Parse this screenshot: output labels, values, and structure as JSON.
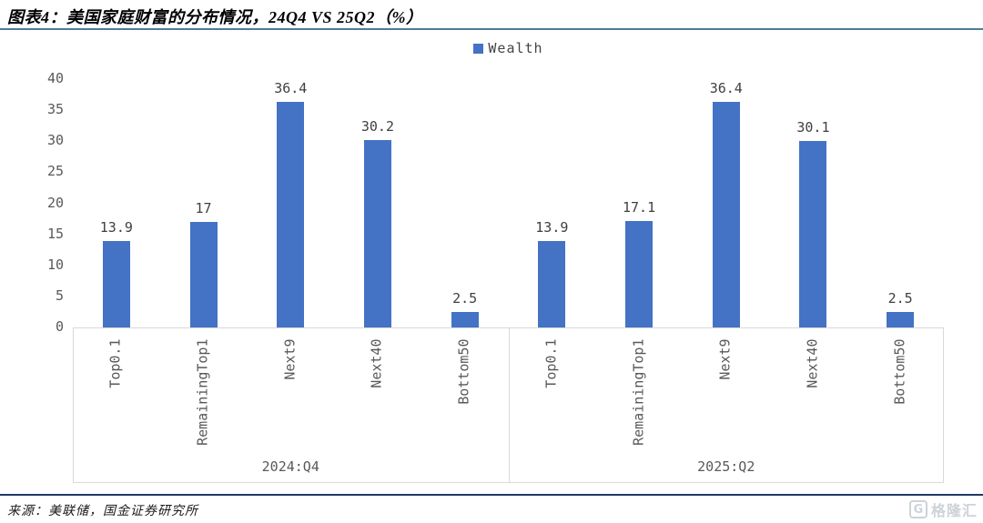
{
  "title": "图表4：美国家庭财富的分布情况，24Q4 VS 25Q2（%）",
  "source": "来源：美联储，国金证券研究所",
  "watermark": {
    "icon": "G",
    "text": "格隆汇"
  },
  "colors": {
    "bar": "#4472c4",
    "title_rule": "#4e7d92",
    "bottom_rule": "#1f3864",
    "axis_text": "#595959",
    "value_text": "#404040",
    "axis_box": "#d9d9d9"
  },
  "chart_data": {
    "type": "bar",
    "title": "图表4：美国家庭财富的分布情况，24Q4 VS 25Q2（%）",
    "legend": [
      {
        "name": "Wealth",
        "color": "#4472c4"
      }
    ],
    "legend_position": "top-center",
    "grid": false,
    "ylim": [
      0,
      40
    ],
    "ytick_step": 5,
    "yticks": [
      0,
      5,
      10,
      15,
      20,
      25,
      30,
      35,
      40
    ],
    "categories": [
      "Top0.1",
      "RemainingTop1",
      "Next9",
      "Next40",
      "Bottom50"
    ],
    "groups": [
      {
        "label": "2024:Q4",
        "values": [
          13.9,
          17,
          36.4,
          30.2,
          2.5
        ],
        "value_labels": [
          "13.9",
          "17",
          "36.4",
          "30.2",
          "2.5"
        ]
      },
      {
        "label": "2025:Q2",
        "values": [
          13.9,
          17.1,
          36.4,
          30.1,
          2.5
        ],
        "value_labels": [
          "13.9",
          "17.1",
          "36.4",
          "30.1",
          "2.5"
        ]
      }
    ]
  }
}
